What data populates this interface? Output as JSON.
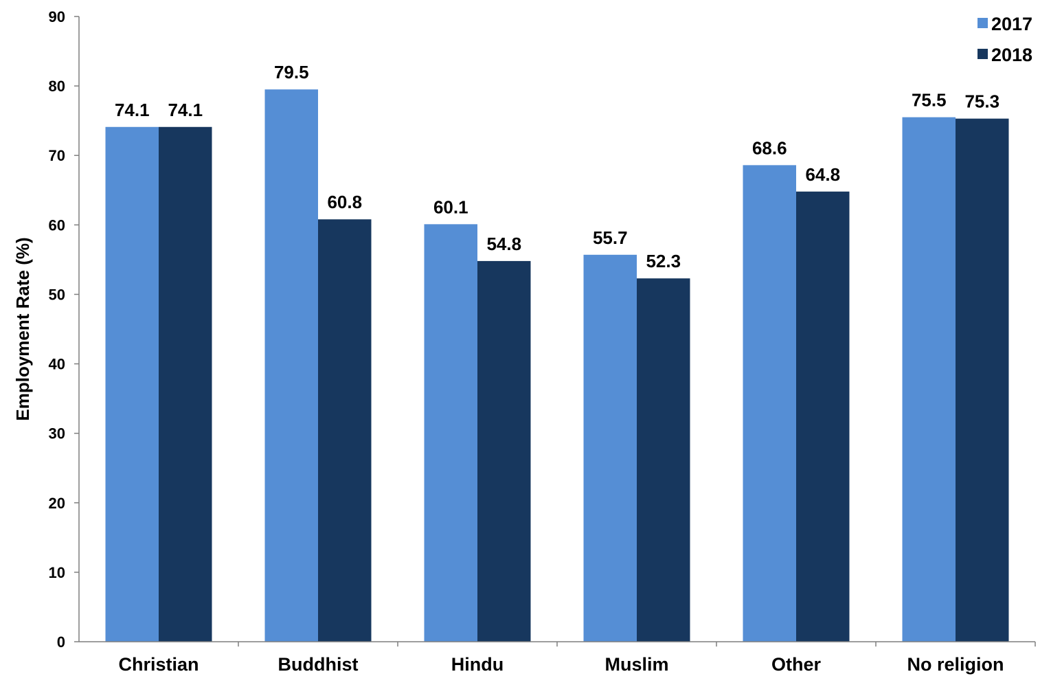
{
  "chart_data": {
    "type": "bar",
    "categories": [
      "Christian",
      "Buddhist",
      "Hindu",
      "Muslim",
      "Other",
      "No religion"
    ],
    "series": [
      {
        "name": "2017",
        "color": "#558ed5",
        "values": [
          74.1,
          79.5,
          60.1,
          55.7,
          68.6,
          75.5
        ]
      },
      {
        "name": "2018",
        "color": "#17375e",
        "values": [
          74.1,
          60.8,
          54.8,
          52.3,
          64.8,
          75.3
        ]
      }
    ],
    "ylabel": "Employment Rate (%)",
    "ylim": [
      0,
      90
    ],
    "yticks": [
      0,
      10,
      20,
      30,
      40,
      50,
      60,
      70,
      80,
      90
    ],
    "grid": false,
    "legend_position": "top-right"
  }
}
